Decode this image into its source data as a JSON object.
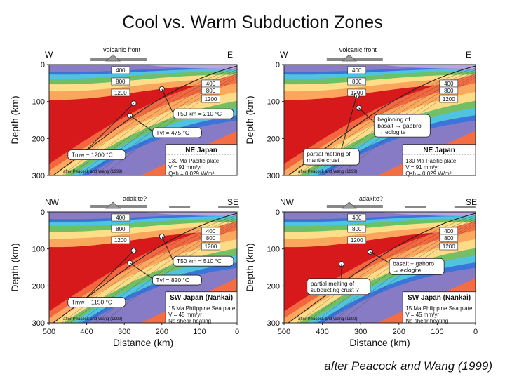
{
  "title": "Cool vs. Warm Subduction Zones",
  "credit": "after Peacock and Wang (1999)",
  "common": {
    "volcanic_front": "volcanic front",
    "adakite": "adakite?",
    "depth_axis": "Depth (km)",
    "distance_axis": "Distance (km)",
    "depth_ticks": [
      "0",
      "100",
      "200",
      "300"
    ],
    "distance_ticks": [
      "500",
      "400",
      "300",
      "200",
      "100",
      "0"
    ],
    "isotherms": [
      "400",
      "800",
      "1200"
    ],
    "panel_credit": "after Peacock and Wang (1999)"
  },
  "panels": [
    {
      "id": "ne-left",
      "side_left": "W",
      "side_right": "E",
      "region": "NE Japan",
      "params": [
        "130 Ma Pacific plate",
        "V = 91 mm/yr",
        "Qsh = 0.029 W/m²"
      ],
      "callouts": [
        "T50 km = 210 °C",
        "Tvf = 475 °C",
        "Tmw ~ 1200 °C"
      ]
    },
    {
      "id": "ne-right",
      "side_left": "W",
      "side_right": "E",
      "region": "NE Japan",
      "params": [
        "130 Ma Pacific plate",
        "V = 91 mm/yr",
        "Qsh = 0.029 W/m²"
      ],
      "callouts": [
        "beginning of",
        "basalt → gabbro",
        "→ eclogite",
        "partial melting of",
        "mantle crust"
      ]
    },
    {
      "id": "sw-left",
      "side_left": "NW",
      "side_right": "SE",
      "region": "SW Japan (Nankai)",
      "params": [
        "15 Ma Philippine Sea plate",
        "V = 45 mm/yr",
        "No shear heating"
      ],
      "callouts": [
        "T50 km = 510 °C",
        "Tvf = 820 °C",
        "Tmw ~ 1150 °C"
      ]
    },
    {
      "id": "sw-right",
      "side_left": "NW",
      "side_right": "SE",
      "region": "SW Japan (Nankai)",
      "params": [
        "15 Ma Philippine Sea plate",
        "V = 45 mm/yr",
        "No shear heating"
      ],
      "callouts": [
        "basalt + gabbro",
        "→ eclogite",
        "partial melting of",
        "subducting crust ?"
      ]
    }
  ],
  "colors": {
    "hot": "#d7191c",
    "warm": "#f46d43",
    "mid": "#fdae61",
    "yellow": "#fee08b",
    "green": "#66bd63",
    "cyan": "#4dc3e8",
    "blue": "#3a6fd8",
    "violet": "#8e7cc3"
  }
}
